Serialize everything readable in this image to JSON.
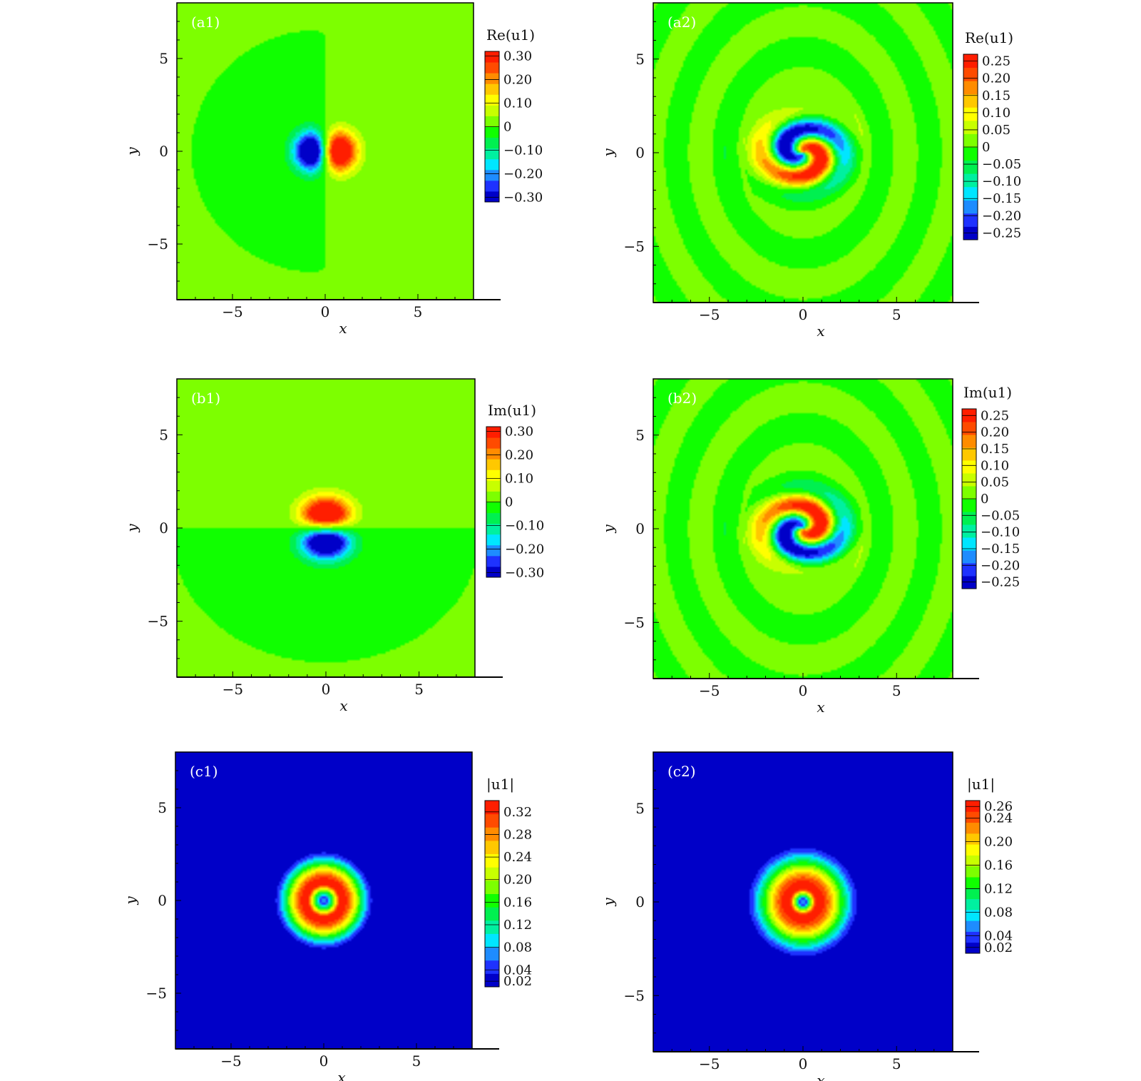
{
  "colors": {
    "palette": [
      "#0000c8",
      "#1e32ff",
      "#1e8cff",
      "#00e6ff",
      "#00f0a0",
      "#00f050",
      "#10ff00",
      "#7dff00",
      "#c8ff00",
      "#ffff00",
      "#ffc800",
      "#ff8c00",
      "#ff4b00",
      "#ff1e00"
    ],
    "green_bg": "#2ef000",
    "blue_bg": "#0a10f0"
  },
  "chart_data": [
    {
      "id": "a1",
      "type": "heatmap",
      "label": "(a1)",
      "xlabel": "x",
      "ylabel": "y",
      "xlim": [
        -8,
        8
      ],
      "ylim": [
        -8,
        8
      ],
      "xticks": [
        -5,
        0,
        5
      ],
      "yticks": [
        -5,
        0,
        5
      ],
      "tick_labels_x": [
        "−5",
        "0",
        "5"
      ],
      "tick_labels_y": [
        "−5",
        "0",
        "5"
      ],
      "field": "dipole-x",
      "vmin": -0.32,
      "vmax": 0.32,
      "features": [
        {
          "x": -0.95,
          "y": 0,
          "value": -0.32
        },
        {
          "x": 0.95,
          "y": 0,
          "value": 0.32
        }
      ],
      "colorbar": {
        "title": "Re(u1)",
        "min": -0.32,
        "max": 0.32,
        "ticks": [
          0.3,
          0.2,
          0.1,
          0,
          -0.1,
          -0.2,
          -0.3
        ],
        "tick_labels": [
          "0.30",
          "0.20",
          "0.10",
          "0",
          "−0.10",
          "−0.20",
          "−0.30"
        ]
      }
    },
    {
      "id": "a2",
      "type": "heatmap",
      "label": "(a2)",
      "xlabel": "x",
      "ylabel": "y",
      "xlim": [
        -8,
        8
      ],
      "ylim": [
        -8,
        8
      ],
      "xticks": [
        -5,
        0,
        5
      ],
      "yticks": [
        -5,
        0,
        5
      ],
      "tick_labels_x": [
        "−5",
        "0",
        "5"
      ],
      "tick_labels_y": [
        "−5",
        "0",
        "5"
      ],
      "field": "spiral",
      "spiral_sign": 1,
      "vmin": -0.27,
      "vmax": 0.27,
      "features": [
        {
          "x": -0.6,
          "y": -0.5,
          "value": 0.27
        },
        {
          "x": 0.6,
          "y": 0.5,
          "value": -0.27
        }
      ],
      "colorbar": {
        "title": "Re(u1)",
        "min": -0.27,
        "max": 0.27,
        "ticks": [
          0.25,
          0.2,
          0.15,
          0.1,
          0.05,
          0,
          -0.05,
          -0.1,
          -0.15,
          -0.2,
          -0.25
        ],
        "tick_labels": [
          "0.25",
          "0.20",
          "0.15",
          "0.10",
          "0.05",
          "0",
          "−0.05",
          "−0.10",
          "−0.15",
          "−0.20",
          "−0.25"
        ]
      }
    },
    {
      "id": "b1",
      "type": "heatmap",
      "label": "(b1)",
      "xlabel": "x",
      "ylabel": "y",
      "xlim": [
        -8,
        8
      ],
      "ylim": [
        -8,
        8
      ],
      "xticks": [
        -5,
        0,
        5
      ],
      "yticks": [
        -5,
        0,
        5
      ],
      "tick_labels_x": [
        "−5",
        "0",
        "5"
      ],
      "tick_labels_y": [
        "−5",
        "0",
        "5"
      ],
      "field": "dipole-y",
      "vmin": -0.32,
      "vmax": 0.32,
      "features": [
        {
          "x": 0,
          "y": 1.0,
          "value": 0.32
        },
        {
          "x": 0,
          "y": -1.0,
          "value": -0.32
        }
      ],
      "colorbar": {
        "title": "Im(u1)",
        "min": -0.32,
        "max": 0.32,
        "ticks": [
          0.3,
          0.2,
          0.1,
          0,
          -0.1,
          -0.2,
          -0.3
        ],
        "tick_labels": [
          "0.30",
          "0.20",
          "0.10",
          "0",
          "−0.10",
          "−0.20",
          "−0.30"
        ]
      }
    },
    {
      "id": "b2",
      "type": "heatmap",
      "label": "(b2)",
      "xlabel": "x",
      "ylabel": "y",
      "xlim": [
        -8,
        8
      ],
      "ylim": [
        -8,
        8
      ],
      "xticks": [
        -5,
        0,
        5
      ],
      "yticks": [
        -5,
        0,
        5
      ],
      "tick_labels_x": [
        "−5",
        "0",
        "5"
      ],
      "tick_labels_y": [
        "−5",
        "0",
        "5"
      ],
      "field": "spiral",
      "spiral_sign": -1,
      "vmin": -0.27,
      "vmax": 0.27,
      "features": [
        {
          "x": 0.5,
          "y": -0.6,
          "value": 0.27
        },
        {
          "x": -0.5,
          "y": 0.6,
          "value": -0.27
        }
      ],
      "colorbar": {
        "title": "Im(u1)",
        "min": -0.27,
        "max": 0.27,
        "ticks": [
          0.25,
          0.2,
          0.15,
          0.1,
          0.05,
          0,
          -0.05,
          -0.1,
          -0.15,
          -0.2,
          -0.25
        ],
        "tick_labels": [
          "0.25",
          "0.20",
          "0.15",
          "0.10",
          "0.05",
          "0",
          "−0.05",
          "−0.10",
          "−0.15",
          "−0.20",
          "−0.25"
        ]
      }
    },
    {
      "id": "c1",
      "type": "heatmap",
      "label": "(c1)",
      "xlabel": "x",
      "ylabel": "y",
      "xlim": [
        -8,
        8
      ],
      "ylim": [
        -8,
        8
      ],
      "xticks": [
        -5,
        0,
        5
      ],
      "yticks": [
        -5,
        0,
        5
      ],
      "tick_labels_x": [
        "−5",
        "0",
        "5"
      ],
      "tick_labels_y": [
        "−5",
        "0",
        "5"
      ],
      "field": "ring",
      "vmin": 0.01,
      "vmax": 0.34,
      "features": [
        {
          "x": 0,
          "y": 0,
          "value": 0.02
        },
        {
          "r": 0.9,
          "value": 0.33
        },
        {
          "r": 2.9,
          "value": 0.02
        }
      ],
      "colorbar": {
        "title": "|u1|",
        "min": 0.01,
        "max": 0.34,
        "ticks": [
          0.32,
          0.28,
          0.24,
          0.2,
          0.16,
          0.12,
          0.08,
          0.04,
          0.02
        ],
        "tick_labels": [
          "0.32",
          "0.28",
          "0.24",
          "0.20",
          "0.16",
          "0.12",
          "0.08",
          "0.04",
          "0.02"
        ]
      }
    },
    {
      "id": "c2",
      "type": "heatmap",
      "label": "(c2)",
      "xlabel": "x",
      "ylabel": "y",
      "xlim": [
        -8,
        8
      ],
      "ylim": [
        -8,
        8
      ],
      "xticks": [
        -5,
        0,
        5
      ],
      "yticks": [
        -5,
        0,
        5
      ],
      "tick_labels_x": [
        "−5",
        "0",
        "5"
      ],
      "tick_labels_y": [
        "−5",
        "0",
        "5"
      ],
      "field": "ring",
      "vmin": 0.01,
      "vmax": 0.27,
      "features": [
        {
          "x": 0,
          "y": 0,
          "value": 0.02
        },
        {
          "r": 0.7,
          "value": 0.27
        },
        {
          "r": 3.3,
          "value": 0.02
        }
      ],
      "colorbar": {
        "title": "|u1|",
        "min": 0.01,
        "max": 0.27,
        "ticks": [
          0.26,
          0.24,
          0.2,
          0.16,
          0.12,
          0.08,
          0.04,
          0.02
        ],
        "tick_labels": [
          "0.26",
          "0.24",
          "0.20",
          "0.16",
          "0.12",
          "0.08",
          "0.04",
          "0.02"
        ]
      }
    }
  ]
}
